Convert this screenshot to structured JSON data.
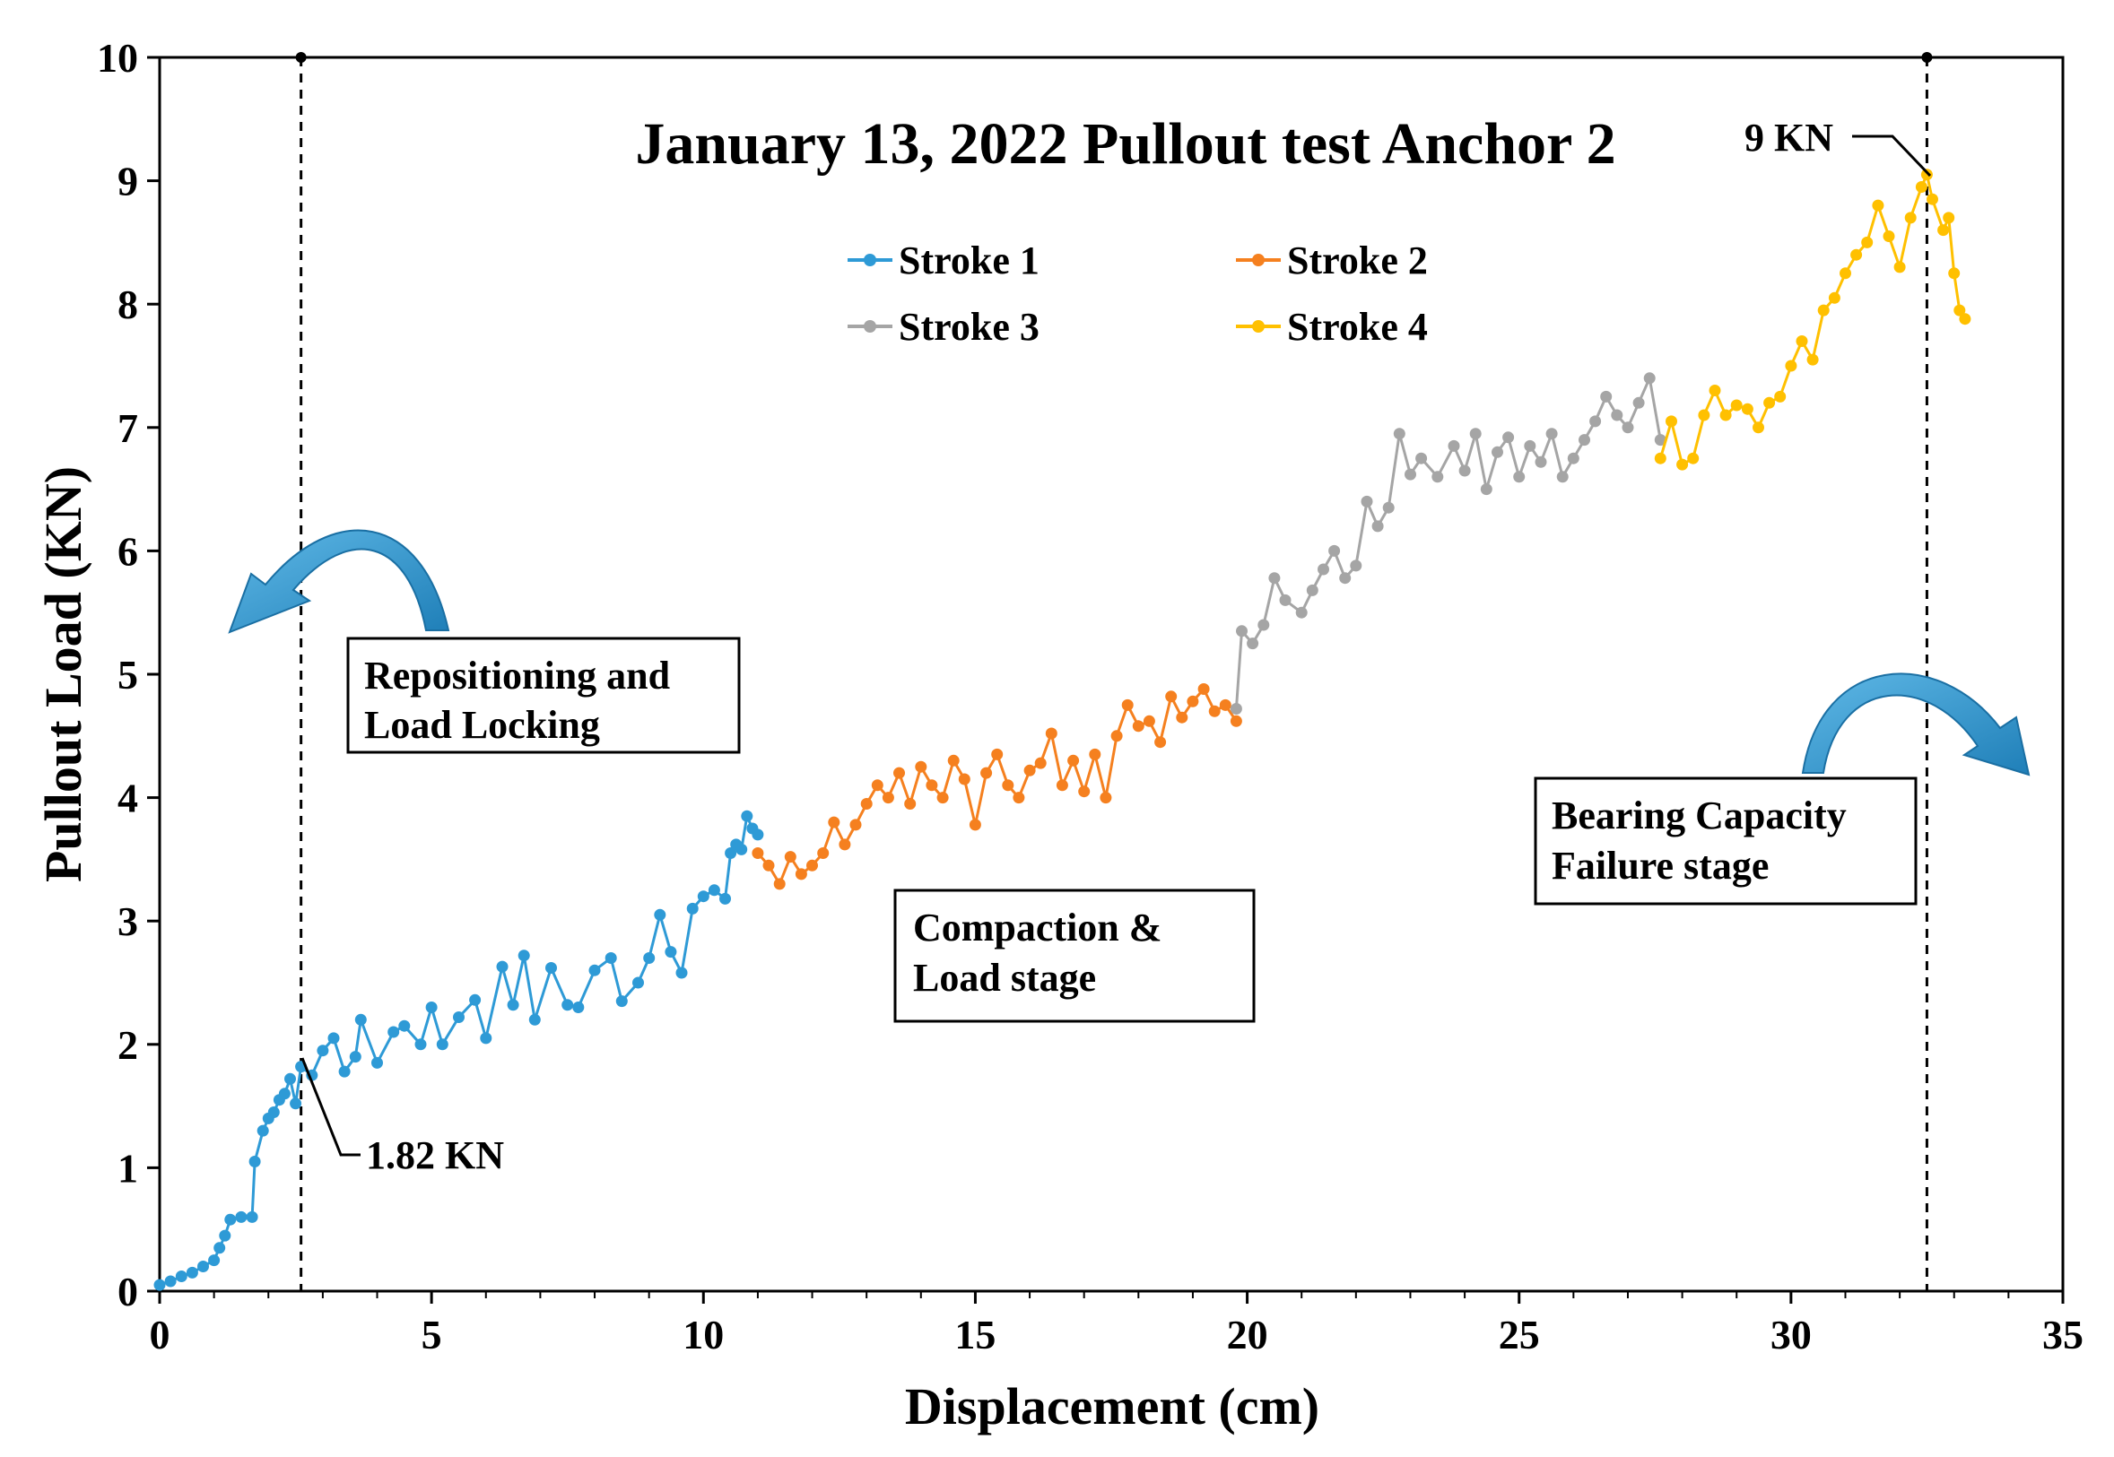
{
  "chart_data": {
    "type": "scatter",
    "title": "January 13, 2022 Pullout test Anchor 2",
    "xlabel": "Displacement (cm)",
    "ylabel": "Pullout Load (KN)",
    "xlim": [
      0,
      35
    ],
    "ylim": [
      0,
      10
    ],
    "xticks": [
      "0",
      "5",
      "10",
      "15",
      "20",
      "25",
      "30",
      "35"
    ],
    "yticks": [
      "0",
      "1",
      "2",
      "3",
      "4",
      "5",
      "6",
      "7",
      "8",
      "9",
      "10"
    ],
    "grid": false,
    "legend_position": "top-center",
    "series": [
      {
        "name": "Stroke 1",
        "color": "#2e9ad6",
        "points": [
          [
            0,
            0.05
          ],
          [
            0.2,
            0.08
          ],
          [
            0.4,
            0.12
          ],
          [
            0.6,
            0.15
          ],
          [
            0.8,
            0.2
          ],
          [
            1.0,
            0.25
          ],
          [
            1.1,
            0.35
          ],
          [
            1.2,
            0.45
          ],
          [
            1.3,
            0.58
          ],
          [
            1.5,
            0.6
          ],
          [
            1.7,
            0.6
          ],
          [
            1.75,
            1.05
          ],
          [
            1.9,
            1.3
          ],
          [
            2.0,
            1.4
          ],
          [
            2.1,
            1.45
          ],
          [
            2.2,
            1.55
          ],
          [
            2.3,
            1.6
          ],
          [
            2.4,
            1.72
          ],
          [
            2.5,
            1.52
          ],
          [
            2.6,
            1.82
          ],
          [
            2.8,
            1.75
          ],
          [
            3.0,
            1.95
          ],
          [
            3.2,
            2.05
          ],
          [
            3.4,
            1.78
          ],
          [
            3.6,
            1.9
          ],
          [
            3.7,
            2.2
          ],
          [
            4.0,
            1.85
          ],
          [
            4.3,
            2.1
          ],
          [
            4.5,
            2.15
          ],
          [
            4.8,
            2.0
          ],
          [
            5.0,
            2.3
          ],
          [
            5.2,
            2.0
          ],
          [
            5.5,
            2.22
          ],
          [
            5.8,
            2.36
          ],
          [
            6.0,
            2.05
          ],
          [
            6.3,
            2.63
          ],
          [
            6.5,
            2.32
          ],
          [
            6.7,
            2.72
          ],
          [
            6.9,
            2.2
          ],
          [
            7.2,
            2.62
          ],
          [
            7.5,
            2.32
          ],
          [
            7.7,
            2.3
          ],
          [
            8.0,
            2.6
          ],
          [
            8.3,
            2.7
          ],
          [
            8.5,
            2.35
          ],
          [
            8.8,
            2.5
          ],
          [
            9.0,
            2.7
          ],
          [
            9.2,
            3.05
          ],
          [
            9.4,
            2.75
          ],
          [
            9.6,
            2.58
          ],
          [
            9.8,
            3.1
          ],
          [
            10.0,
            3.2
          ],
          [
            10.2,
            3.25
          ],
          [
            10.4,
            3.18
          ],
          [
            10.5,
            3.55
          ],
          [
            10.6,
            3.62
          ],
          [
            10.7,
            3.58
          ],
          [
            10.8,
            3.85
          ],
          [
            10.9,
            3.75
          ],
          [
            11.0,
            3.7
          ]
        ]
      },
      {
        "name": "Stroke 2",
        "color": "#f5801f",
        "points": [
          [
            11.0,
            3.55
          ],
          [
            11.2,
            3.45
          ],
          [
            11.4,
            3.3
          ],
          [
            11.6,
            3.52
          ],
          [
            11.8,
            3.38
          ],
          [
            12.0,
            3.45
          ],
          [
            12.2,
            3.55
          ],
          [
            12.4,
            3.8
          ],
          [
            12.6,
            3.62
          ],
          [
            12.8,
            3.78
          ],
          [
            13.0,
            3.95
          ],
          [
            13.2,
            4.1
          ],
          [
            13.4,
            4.0
          ],
          [
            13.6,
            4.2
          ],
          [
            13.8,
            3.95
          ],
          [
            14.0,
            4.25
          ],
          [
            14.2,
            4.1
          ],
          [
            14.4,
            4.0
          ],
          [
            14.6,
            4.3
          ],
          [
            14.8,
            4.15
          ],
          [
            15.0,
            3.78
          ],
          [
            15.2,
            4.2
          ],
          [
            15.4,
            4.35
          ],
          [
            15.6,
            4.1
          ],
          [
            15.8,
            4.0
          ],
          [
            16.0,
            4.22
          ],
          [
            16.2,
            4.28
          ],
          [
            16.4,
            4.52
          ],
          [
            16.6,
            4.1
          ],
          [
            16.8,
            4.3
          ],
          [
            17.0,
            4.05
          ],
          [
            17.2,
            4.35
          ],
          [
            17.4,
            4.0
          ],
          [
            17.6,
            4.5
          ],
          [
            17.8,
            4.75
          ],
          [
            18.0,
            4.58
          ],
          [
            18.2,
            4.62
          ],
          [
            18.4,
            4.45
          ],
          [
            18.6,
            4.82
          ],
          [
            18.8,
            4.65
          ],
          [
            19.0,
            4.78
          ],
          [
            19.2,
            4.88
          ],
          [
            19.4,
            4.7
          ],
          [
            19.6,
            4.75
          ],
          [
            19.8,
            4.62
          ]
        ]
      },
      {
        "name": "Stroke 3",
        "color": "#a5a5a5",
        "points": [
          [
            19.8,
            4.72
          ],
          [
            19.9,
            5.35
          ],
          [
            20.1,
            5.25
          ],
          [
            20.3,
            5.4
          ],
          [
            20.5,
            5.78
          ],
          [
            20.7,
            5.6
          ],
          [
            21.0,
            5.5
          ],
          [
            21.2,
            5.68
          ],
          [
            21.4,
            5.85
          ],
          [
            21.6,
            6.0
          ],
          [
            21.8,
            5.78
          ],
          [
            22.0,
            5.88
          ],
          [
            22.2,
            6.4
          ],
          [
            22.4,
            6.2
          ],
          [
            22.6,
            6.35
          ],
          [
            22.8,
            6.95
          ],
          [
            23.0,
            6.62
          ],
          [
            23.2,
            6.75
          ],
          [
            23.5,
            6.6
          ],
          [
            23.8,
            6.85
          ],
          [
            24.0,
            6.65
          ],
          [
            24.2,
            6.95
          ],
          [
            24.4,
            6.5
          ],
          [
            24.6,
            6.8
          ],
          [
            24.8,
            6.92
          ],
          [
            25.0,
            6.6
          ],
          [
            25.2,
            6.85
          ],
          [
            25.4,
            6.72
          ],
          [
            25.6,
            6.95
          ],
          [
            25.8,
            6.6
          ],
          [
            26.0,
            6.75
          ],
          [
            26.2,
            6.9
          ],
          [
            26.4,
            7.05
          ],
          [
            26.6,
            7.25
          ],
          [
            26.8,
            7.1
          ],
          [
            27.0,
            7.0
          ],
          [
            27.2,
            7.2
          ],
          [
            27.4,
            7.4
          ],
          [
            27.6,
            6.9
          ]
        ]
      },
      {
        "name": "Stroke 4",
        "color": "#ffc000",
        "points": [
          [
            27.6,
            6.75
          ],
          [
            27.8,
            7.05
          ],
          [
            28.0,
            6.7
          ],
          [
            28.2,
            6.75
          ],
          [
            28.4,
            7.1
          ],
          [
            28.6,
            7.3
          ],
          [
            28.8,
            7.1
          ],
          [
            29.0,
            7.18
          ],
          [
            29.2,
            7.15
          ],
          [
            29.4,
            7.0
          ],
          [
            29.6,
            7.2
          ],
          [
            29.8,
            7.25
          ],
          [
            30.0,
            7.5
          ],
          [
            30.2,
            7.7
          ],
          [
            30.4,
            7.55
          ],
          [
            30.6,
            7.95
          ],
          [
            30.8,
            8.05
          ],
          [
            31.0,
            8.25
          ],
          [
            31.2,
            8.4
          ],
          [
            31.4,
            8.5
          ],
          [
            31.6,
            8.8
          ],
          [
            31.8,
            8.55
          ],
          [
            32.0,
            8.3
          ],
          [
            32.2,
            8.7
          ],
          [
            32.4,
            8.95
          ],
          [
            32.5,
            9.05
          ],
          [
            32.6,
            8.85
          ],
          [
            32.8,
            8.6
          ],
          [
            32.9,
            8.7
          ],
          [
            33.0,
            8.25
          ],
          [
            33.1,
            7.95
          ],
          [
            33.2,
            7.88
          ]
        ]
      }
    ],
    "reference_lines": [
      {
        "type": "vertical",
        "x": 2.6,
        "style": "dashed"
      },
      {
        "type": "vertical",
        "x": 32.5,
        "style": "dashed"
      }
    ],
    "annotations": [
      {
        "text": "1.82 KN",
        "x": 2.6,
        "y": 1.82
      },
      {
        "text": "9 KN",
        "x": 32.5,
        "y": 9.05
      }
    ],
    "text_boxes": [
      {
        "lines": [
          "Repositioning and",
          "Load Locking"
        ]
      },
      {
        "lines": [
          "Compaction &",
          "Load stage"
        ]
      },
      {
        "lines": [
          "Bearing Capacity",
          "Failure stage"
        ]
      }
    ]
  }
}
